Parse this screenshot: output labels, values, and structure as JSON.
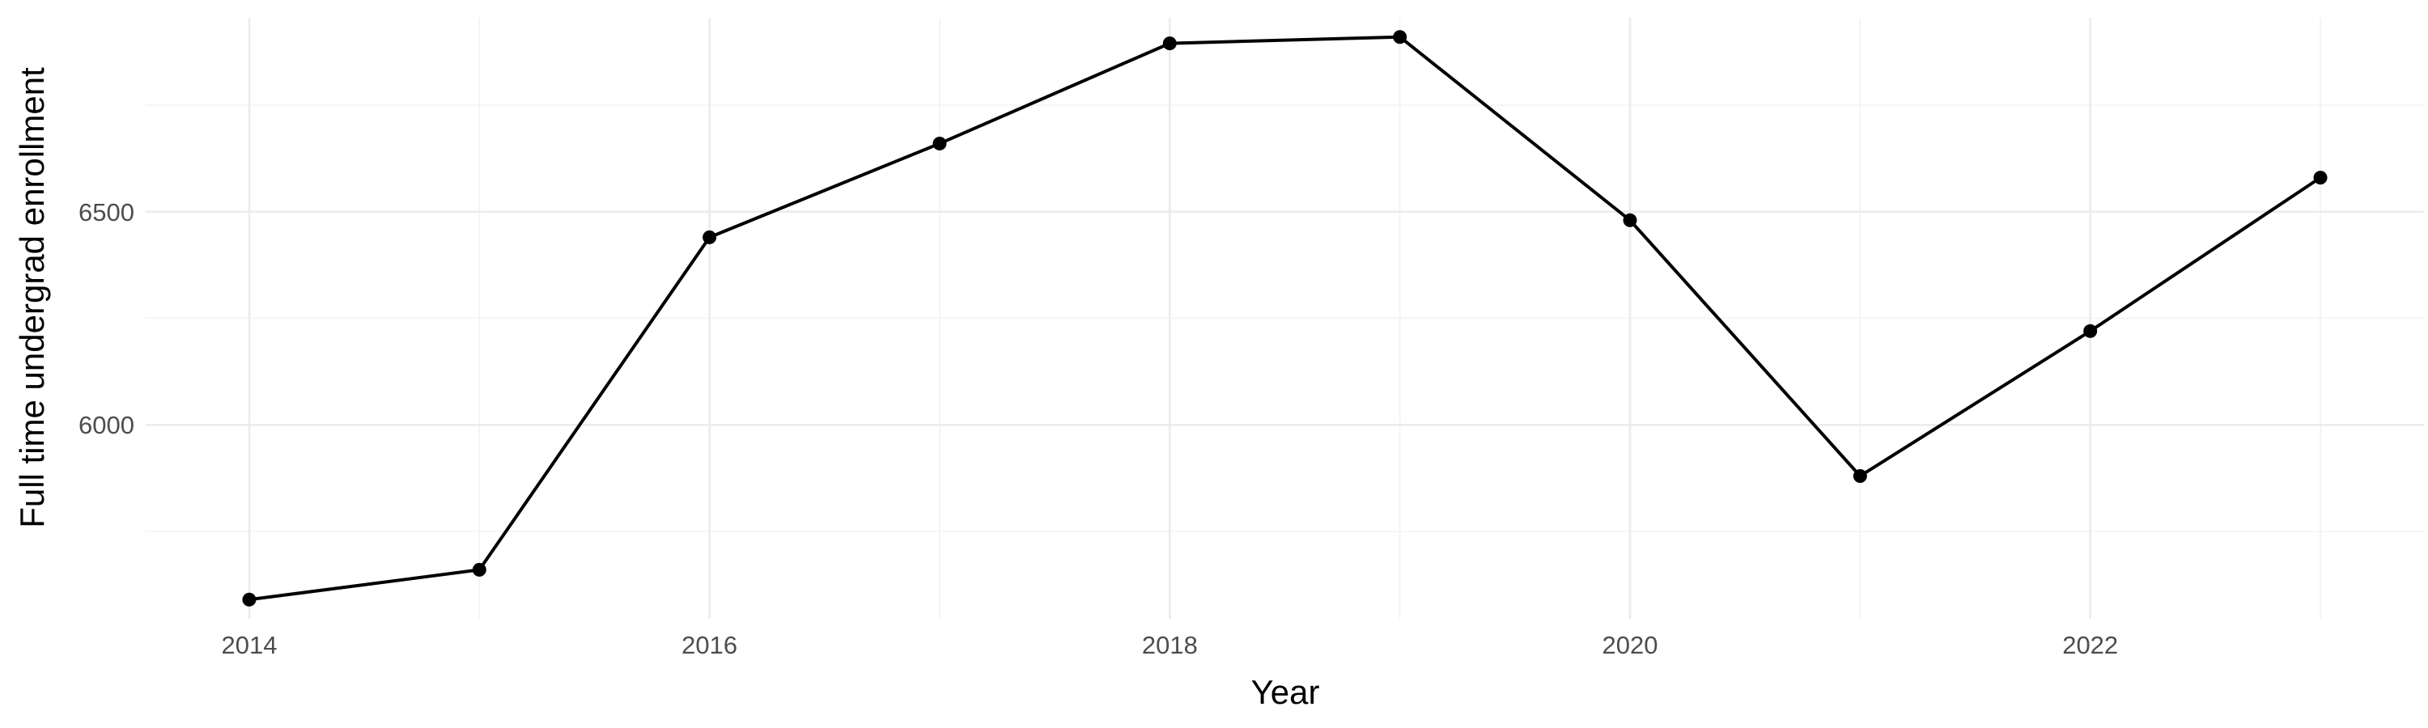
{
  "chart_data": {
    "type": "line",
    "title": "",
    "xlabel": "Year",
    "ylabel": "Full time undergrad enrollment",
    "x": [
      2014,
      2015,
      2016,
      2017,
      2018,
      2019,
      2020,
      2021,
      2022,
      2023
    ],
    "series": [
      {
        "values": [
          5590,
          5660,
          6440,
          6660,
          6895,
          6910,
          6480,
          5880,
          6220,
          6580
        ]
      }
    ],
    "xlim": [
      2013.55,
      2023.45
    ],
    "ylim": [
      5545,
      6955
    ],
    "x_ticks": [
      2014,
      2016,
      2018,
      2020,
      2022
    ],
    "x_minor_ticks": [
      2015,
      2017,
      2019,
      2021,
      2023
    ],
    "y_ticks": [
      6000,
      6500
    ],
    "y_minor_ticks": [
      5750,
      6250,
      6750
    ],
    "grid": true,
    "legend": "none",
    "colors": {
      "line": "#000000",
      "point": "#000000",
      "grid_major": "#ebebeb",
      "grid_minor": "#f4f4f4",
      "tick_text": "#4d4d4d",
      "background": "#ffffff"
    }
  }
}
